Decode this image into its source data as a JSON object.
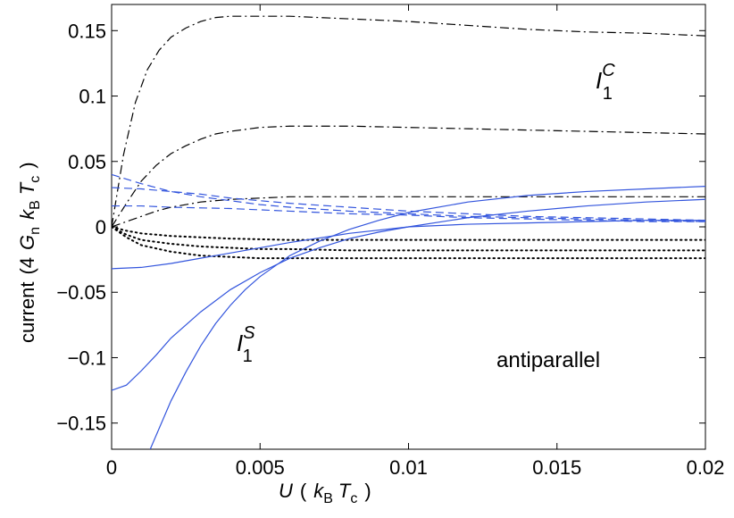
{
  "chart_data": {
    "type": "line",
    "title": "",
    "xlabel": {
      "main": "U",
      "paren_open": "(",
      "k": "k",
      "k_sub": "B",
      "T": "T",
      "T_sub": "c",
      "paren_close": ")"
    },
    "ylabel": {
      "main": "current",
      "paren_open": "(4",
      "G": "G",
      "G_sub": "n",
      "k": "k",
      "k_sub": "B",
      "T": "T",
      "T_sub": "c",
      "paren_close": ")"
    },
    "xlim": [
      0,
      0.02
    ],
    "ylim": [
      -0.17,
      0.17
    ],
    "xticks": [
      0,
      0.005,
      0.01,
      0.015,
      0.02
    ],
    "xtick_labels": [
      "0",
      "0.005",
      "0.01",
      "0.015",
      "0.02"
    ],
    "yticks": [
      0.15,
      0.1,
      0.05,
      0,
      -0.05,
      -0.1,
      -0.15
    ],
    "ytick_labels": [
      "0.15",
      "0.1",
      "0.05",
      "0",
      "−0.05",
      "−0.1",
      "−0.15"
    ],
    "grid": false,
    "annotations": {
      "ic": {
        "base": "I",
        "sub": "1",
        "sup": "C"
      },
      "is": {
        "base": "I",
        "sub": "1",
        "sup": "S"
      },
      "mode": "antiparallel"
    },
    "series": [
      {
        "name": "I1C upper",
        "group": "I1C",
        "style": "dashdot",
        "color": "#000000",
        "x": [
          0,
          0.0004,
          0.0008,
          0.0012,
          0.0016,
          0.002,
          0.0025,
          0.003,
          0.0035,
          0.004,
          0.005,
          0.006,
          0.008,
          0.01,
          0.012,
          0.014,
          0.016,
          0.018,
          0.02
        ],
        "y": [
          0.0,
          0.055,
          0.095,
          0.12,
          0.135,
          0.145,
          0.152,
          0.157,
          0.16,
          0.161,
          0.161,
          0.161,
          0.159,
          0.157,
          0.154,
          0.151,
          0.149,
          0.148,
          0.146
        ]
      },
      {
        "name": "I1C middle",
        "group": "I1C",
        "style": "dashdot",
        "color": "#000000",
        "x": [
          0,
          0.0005,
          0.001,
          0.0015,
          0.002,
          0.0025,
          0.003,
          0.0035,
          0.004,
          0.005,
          0.006,
          0.007,
          0.008,
          0.01,
          0.012,
          0.014,
          0.016,
          0.018,
          0.02
        ],
        "y": [
          0.0,
          0.018,
          0.035,
          0.047,
          0.056,
          0.062,
          0.067,
          0.071,
          0.073,
          0.076,
          0.077,
          0.077,
          0.077,
          0.076,
          0.075,
          0.074,
          0.073,
          0.072,
          0.071
        ]
      },
      {
        "name": "I1C lower",
        "group": "I1C",
        "style": "dashdot",
        "color": "#000000",
        "x": [
          0,
          0.0005,
          0.001,
          0.0015,
          0.002,
          0.003,
          0.004,
          0.005,
          0.006,
          0.007,
          0.008,
          0.01,
          0.012,
          0.014,
          0.016,
          0.018,
          0.02
        ],
        "y": [
          0.0,
          0.004,
          0.008,
          0.012,
          0.015,
          0.019,
          0.021,
          0.022,
          0.023,
          0.023,
          0.023,
          0.023,
          0.023,
          0.023,
          0.023,
          0.023,
          0.023
        ]
      },
      {
        "name": "dashed blue 1",
        "group": "dashed",
        "style": "dashed",
        "color": "#3355dd",
        "x": [
          0,
          0.001,
          0.002,
          0.003,
          0.004,
          0.005,
          0.006,
          0.008,
          0.01,
          0.012,
          0.014,
          0.016,
          0.018,
          0.02
        ],
        "y": [
          0.04,
          0.033,
          0.027,
          0.023,
          0.02,
          0.017,
          0.015,
          0.012,
          0.01,
          0.008,
          0.007,
          0.006,
          0.005,
          0.004
        ]
      },
      {
        "name": "dashed blue 2",
        "group": "dashed",
        "style": "dashed",
        "color": "#3355dd",
        "x": [
          0,
          0.001,
          0.002,
          0.003,
          0.004,
          0.005,
          0.006,
          0.008,
          0.01,
          0.012,
          0.014,
          0.016,
          0.018,
          0.02
        ],
        "y": [
          0.03,
          0.029,
          0.027,
          0.025,
          0.022,
          0.02,
          0.018,
          0.015,
          0.012,
          0.01,
          0.008,
          0.007,
          0.006,
          0.005
        ]
      },
      {
        "name": "dashed blue 3",
        "group": "dashed",
        "style": "dashed",
        "color": "#3355dd",
        "x": [
          0,
          0.001,
          0.002,
          0.004,
          0.006,
          0.008,
          0.01,
          0.012,
          0.014,
          0.016,
          0.018,
          0.02
        ],
        "y": [
          0.016,
          0.016,
          0.015,
          0.014,
          0.012,
          0.01,
          0.009,
          0.007,
          0.006,
          0.005,
          0.004,
          0.004
        ]
      },
      {
        "name": "dotted black 1",
        "group": "dotted",
        "style": "dotted",
        "color": "#000000",
        "x": [
          0,
          0.0005,
          0.001,
          0.002,
          0.003,
          0.004,
          0.005,
          0.006,
          0.008,
          0.01,
          0.012,
          0.014,
          0.016,
          0.018,
          0.02
        ],
        "y": [
          0.0,
          -0.003,
          -0.005,
          -0.007,
          -0.008,
          -0.009,
          -0.0095,
          -0.01,
          -0.01,
          -0.01,
          -0.01,
          -0.01,
          -0.01,
          -0.01,
          -0.01
        ]
      },
      {
        "name": "dotted black 2",
        "group": "dotted",
        "style": "dotted",
        "color": "#000000",
        "x": [
          0,
          0.0005,
          0.001,
          0.002,
          0.003,
          0.004,
          0.005,
          0.006,
          0.008,
          0.01,
          0.012,
          0.014,
          0.016,
          0.018,
          0.02
        ],
        "y": [
          0.0,
          -0.006,
          -0.01,
          -0.013,
          -0.015,
          -0.016,
          -0.017,
          -0.017,
          -0.018,
          -0.018,
          -0.018,
          -0.018,
          -0.018,
          -0.018,
          -0.018
        ]
      },
      {
        "name": "dotted black 3",
        "group": "dotted",
        "style": "dotted",
        "color": "#000000",
        "x": [
          0,
          0.0005,
          0.001,
          0.002,
          0.003,
          0.004,
          0.005,
          0.006,
          0.008,
          0.01,
          0.012,
          0.014,
          0.016,
          0.018,
          0.02
        ],
        "y": [
          0.0,
          -0.008,
          -0.014,
          -0.019,
          -0.022,
          -0.023,
          -0.024,
          -0.024,
          -0.024,
          -0.024,
          -0.024,
          -0.024,
          -0.024,
          -0.024,
          -0.024
        ]
      },
      {
        "name": "I1S solid 1",
        "group": "I1S",
        "style": "solid",
        "color": "#3355dd",
        "x": [
          0,
          0.001,
          0.002,
          0.003,
          0.004,
          0.005,
          0.006,
          0.008,
          0.01,
          0.012,
          0.014,
          0.016,
          0.018,
          0.02
        ],
        "y": [
          -0.032,
          -0.031,
          -0.028,
          -0.024,
          -0.02,
          -0.016,
          -0.012,
          -0.005,
          0.0,
          0.002,
          0.003,
          0.004,
          0.005,
          0.005
        ]
      },
      {
        "name": "I1S solid 2",
        "group": "I1S",
        "style": "solid",
        "color": "#3355dd",
        "x": [
          0,
          0.0005,
          0.001,
          0.0015,
          0.002,
          0.003,
          0.004,
          0.005,
          0.006,
          0.007,
          0.008,
          0.009,
          0.01,
          0.012,
          0.014,
          0.016,
          0.018,
          0.02
        ],
        "y": [
          -0.125,
          -0.121,
          -0.11,
          -0.098,
          -0.085,
          -0.065,
          -0.048,
          -0.035,
          -0.024,
          -0.016,
          -0.009,
          -0.004,
          0.0,
          0.007,
          0.012,
          0.016,
          0.019,
          0.021
        ]
      },
      {
        "name": "I1S solid 3",
        "group": "I1S",
        "style": "solid",
        "color": "#3355dd",
        "x": [
          0.0013,
          0.002,
          0.0025,
          0.003,
          0.0035,
          0.004,
          0.0045,
          0.005,
          0.0055,
          0.006,
          0.007,
          0.008,
          0.009,
          0.01,
          0.012,
          0.014,
          0.016,
          0.018,
          0.02
        ],
        "y": [
          -0.17,
          -0.133,
          -0.111,
          -0.091,
          -0.074,
          -0.06,
          -0.048,
          -0.038,
          -0.03,
          -0.022,
          -0.011,
          -0.002,
          0.005,
          0.011,
          0.019,
          0.024,
          0.027,
          0.029,
          0.031
        ]
      }
    ]
  }
}
